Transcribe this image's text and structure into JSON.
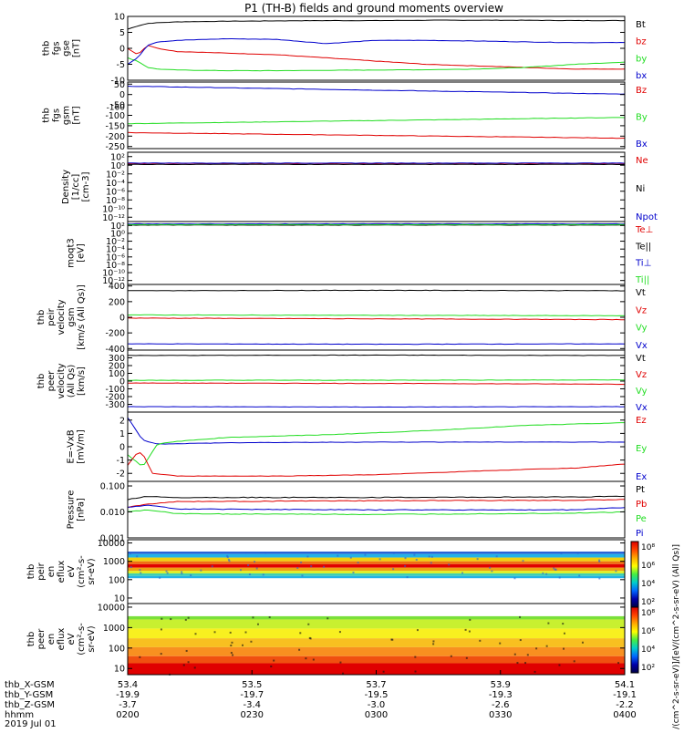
{
  "title": "P1 (TH-B) fields and ground moments overview",
  "date_label": "2019 Jul 01",
  "colors": {
    "black": "#000000",
    "red": "#e00000",
    "green": "#22dd22",
    "blue": "#0000cc"
  },
  "chart_data": [
    {
      "type": "line",
      "ylabel": [
        "thb",
        "fgs",
        "gse",
        "[nT]"
      ],
      "ylim": [
        -10,
        10
      ],
      "yticks": [
        10,
        5,
        0,
        -5,
        -10
      ],
      "ytick_labels": [
        "10",
        "5",
        "0",
        "-5",
        "-10"
      ],
      "legend": [
        {
          "text": "Bt",
          "color": "black"
        },
        {
          "text": "bz",
          "color": "red"
        },
        {
          "text": "by",
          "color": "green"
        },
        {
          "text": "bx",
          "color": "blue"
        }
      ],
      "series": [
        {
          "name": "Bt",
          "color": "black",
          "x": [
            0,
            0.02,
            0.04,
            0.06,
            0.1,
            0.2,
            0.3,
            0.4,
            0.5,
            0.6,
            0.7,
            0.8,
            0.9,
            1
          ],
          "y": [
            6,
            7,
            7.8,
            8,
            8.3,
            8.5,
            8.6,
            8.7,
            8.7,
            8.8,
            8.8,
            8.8,
            8.7,
            8.7
          ]
        },
        {
          "name": "bz",
          "color": "red",
          "x": [
            0,
            0.02,
            0.04,
            0.06,
            0.1,
            0.2,
            0.3,
            0.4,
            0.5,
            0.6,
            0.7,
            0.8,
            0.9,
            1
          ],
          "y": [
            0,
            -2,
            1,
            0,
            -1,
            -1.5,
            -2,
            -3,
            -4,
            -5,
            -5.5,
            -6,
            -6.5,
            -6.5
          ]
        },
        {
          "name": "by",
          "color": "green",
          "x": [
            0,
            0.02,
            0.04,
            0.06,
            0.1,
            0.2,
            0.3,
            0.4,
            0.5,
            0.6,
            0.7,
            0.8,
            0.9,
            1
          ],
          "y": [
            -3,
            -4,
            -6,
            -6.5,
            -6.8,
            -7,
            -7,
            -6.9,
            -6.8,
            -6.7,
            -6.5,
            -6,
            -5,
            -4.3
          ]
        },
        {
          "name": "bx",
          "color": "blue",
          "x": [
            0,
            0.02,
            0.04,
            0.06,
            0.1,
            0.2,
            0.3,
            0.4,
            0.5,
            0.6,
            0.7,
            0.8,
            0.9,
            1
          ],
          "y": [
            -5,
            -3,
            1,
            2,
            2.5,
            3,
            2.8,
            1.5,
            2.5,
            2.5,
            2.3,
            2,
            1.8,
            1.8
          ]
        }
      ]
    },
    {
      "type": "line",
      "ylabel": [
        "thb",
        "fgs",
        "gsm",
        "[nT]"
      ],
      "ylim": [
        -260,
        60
      ],
      "yticks": [
        50,
        0,
        -50,
        -100,
        -150,
        -200,
        -250
      ],
      "ytick_labels": [
        "50",
        "0",
        "-50",
        "-100",
        "-150",
        "-200",
        "-250"
      ],
      "overlap_tick": "-160",
      "legend": [
        {
          "text": "Bz",
          "color": "red"
        },
        {
          "text": "By",
          "color": "green"
        },
        {
          "text": "Bx",
          "color": "blue"
        }
      ],
      "series": [
        {
          "name": "Bx",
          "color": "blue",
          "x": [
            0,
            1
          ],
          "y": [
            40,
            2
          ]
        },
        {
          "name": "By",
          "color": "green",
          "x": [
            0,
            1
          ],
          "y": [
            -140,
            -110
          ]
        },
        {
          "name": "Bz",
          "color": "red",
          "x": [
            0,
            1
          ],
          "y": [
            -183,
            -210
          ]
        }
      ]
    },
    {
      "type": "line",
      "ylabel": [
        "Density",
        "[1/cc]",
        "[cm-3]"
      ],
      "ylim": [
        -13,
        3
      ],
      "yticks": [
        2,
        0,
        -2,
        -4,
        -6,
        -8,
        -10,
        -12
      ],
      "ytick_labels": [
        "10²",
        "10⁰",
        "10⁻²",
        "10⁻⁴",
        "10⁻⁶",
        "10⁻⁸",
        "10⁻¹⁰",
        "10⁻¹²"
      ],
      "legend": [
        {
          "text": "Ne",
          "color": "red"
        },
        {
          "text": "Ni",
          "color": "black"
        },
        {
          "text": "Npot",
          "color": "blue"
        }
      ],
      "series": [
        {
          "name": "Ne",
          "color": "red",
          "x": [
            0,
            1
          ],
          "y": [
            0.4,
            0.4
          ]
        },
        {
          "name": "Ni",
          "color": "black",
          "x": [
            0,
            1
          ],
          "y": [
            0.2,
            0.2
          ]
        },
        {
          "name": "Npot",
          "color": "blue",
          "x": [
            0,
            1
          ],
          "y": [
            0.5,
            0.5
          ]
        }
      ]
    },
    {
      "type": "line",
      "ylabel": [
        "moqt3",
        "[eV]"
      ],
      "ylim": [
        -13,
        3
      ],
      "yticks": [
        2,
        0,
        -2,
        -4,
        -6,
        -8,
        -10,
        -12
      ],
      "ytick_labels": [
        "10²",
        "10⁰",
        "10⁻²",
        "10⁻⁴",
        "10⁻⁶",
        "10⁻⁸",
        "10⁻¹⁰",
        "10⁻¹²"
      ],
      "legend": [
        {
          "text": "Te⊥",
          "color": "red"
        },
        {
          "text": "Te||",
          "color": "black"
        },
        {
          "text": "Ti⊥",
          "color": "blue"
        },
        {
          "text": "Ti||",
          "color": "green"
        }
      ],
      "series": [
        {
          "name": "Te⊥",
          "color": "red",
          "x": [
            0,
            1
          ],
          "y": [
            2.3,
            2.3
          ]
        },
        {
          "name": "Te||",
          "color": "black",
          "x": [
            0,
            1
          ],
          "y": [
            2.1,
            2.1
          ]
        },
        {
          "name": "Ti⊥",
          "color": "blue",
          "x": [
            0,
            1
          ],
          "y": [
            2.4,
            2.4
          ]
        },
        {
          "name": "Ti||",
          "color": "green",
          "x": [
            0,
            1
          ],
          "y": [
            2.2,
            2.2
          ]
        }
      ]
    },
    {
      "type": "line",
      "ylabel": [
        "thb",
        "peir",
        "velocity",
        "gsm",
        "[km/s (All Qs)]"
      ],
      "ylim": [
        -420,
        420
      ],
      "yticks": [
        400,
        200,
        0,
        -200,
        -400
      ],
      "ytick_labels": [
        "400",
        "200",
        "0",
        "-200",
        "-400"
      ],
      "legend": [
        {
          "text": "Vt",
          "color": "black"
        },
        {
          "text": "Vz",
          "color": "red"
        },
        {
          "text": "Vy",
          "color": "green"
        },
        {
          "text": "Vx",
          "color": "blue"
        }
      ],
      "series": [
        {
          "name": "Vt",
          "color": "black",
          "x": [
            0,
            0.5,
            1
          ],
          "y": [
            340,
            345,
            340
          ]
        },
        {
          "name": "Vz",
          "color": "red",
          "x": [
            0,
            0.5,
            1
          ],
          "y": [
            -10,
            -20,
            -30
          ]
        },
        {
          "name": "Vy",
          "color": "green",
          "x": [
            0,
            0.5,
            1
          ],
          "y": [
            30,
            25,
            20
          ]
        },
        {
          "name": "Vx",
          "color": "blue",
          "x": [
            0,
            0.5,
            1
          ],
          "y": [
            -340,
            -345,
            -340
          ]
        }
      ]
    },
    {
      "type": "line",
      "ylabel": [
        "thb",
        "peer",
        "velocity",
        "(All Qs)",
        "[km/s]"
      ],
      "ylim": [
        -400,
        400
      ],
      "yticks": [
        300,
        200,
        100,
        0,
        -100,
        -200,
        -300
      ],
      "ytick_labels": [
        "300",
        "200",
        "100",
        "0",
        "-100",
        "-200",
        "-300"
      ],
      "legend": [
        {
          "text": "Vt",
          "color": "black"
        },
        {
          "text": "Vz",
          "color": "red"
        },
        {
          "text": "Vy",
          "color": "green"
        },
        {
          "text": "Vx",
          "color": "blue"
        }
      ],
      "series": [
        {
          "name": "Vt",
          "color": "black",
          "x": [
            0,
            0.5,
            1
          ],
          "y": [
            330,
            335,
            330
          ]
        },
        {
          "name": "Vz",
          "color": "red",
          "x": [
            0,
            0.5,
            1
          ],
          "y": [
            -25,
            -30,
            -40
          ]
        },
        {
          "name": "Vy",
          "color": "green",
          "x": [
            0,
            0.5,
            1
          ],
          "y": [
            10,
            12,
            15
          ]
        },
        {
          "name": "Vx",
          "color": "blue",
          "x": [
            0,
            0.5,
            1
          ],
          "y": [
            -330,
            -335,
            -330
          ]
        }
      ]
    },
    {
      "type": "line",
      "ylabel": [
        "E=-VxB",
        "[mV/m]"
      ],
      "ylim": [
        -2.6,
        2.6
      ],
      "yticks": [
        2,
        1,
        0,
        -1,
        -2
      ],
      "ytick_labels": [
        "2",
        "1",
        "0",
        "-1",
        "-2"
      ],
      "legend": [
        {
          "text": "Ez",
          "color": "red"
        },
        {
          "text": "Ey",
          "color": "green"
        },
        {
          "text": "Ex",
          "color": "blue"
        }
      ],
      "series": [
        {
          "name": "Ex",
          "color": "blue",
          "x": [
            0,
            0.03,
            0.06,
            0.2,
            0.5,
            1
          ],
          "y": [
            2.2,
            0.5,
            0.2,
            0.3,
            0.35,
            0.35
          ]
        },
        {
          "name": "Ey",
          "color": "green",
          "x": [
            0,
            0.03,
            0.06,
            0.1,
            0.2,
            0.4,
            0.6,
            0.8,
            1
          ],
          "y": [
            -0.6,
            -1.5,
            0.2,
            0.4,
            0.7,
            0.9,
            1.2,
            1.6,
            1.8
          ]
        },
        {
          "name": "Ez",
          "color": "red",
          "x": [
            0,
            0.02,
            0.03,
            0.05,
            0.1,
            0.3,
            0.5,
            0.8,
            0.9,
            1
          ],
          "y": [
            -1.4,
            -0.4,
            -0.5,
            -2,
            -2.2,
            -2.2,
            -2.1,
            -1.7,
            -1.6,
            -1.3
          ]
        }
      ]
    },
    {
      "type": "line",
      "ylabel": [
        "Pressure",
        "[nPa]"
      ],
      "ylog": true,
      "ylim": [
        0.001,
        0.15
      ],
      "yticks": [
        0.1,
        0.01,
        0.001
      ],
      "ytick_labels": [
        "0.100",
        "0.010",
        "0.001"
      ],
      "legend": [
        {
          "text": "Pt",
          "color": "black"
        },
        {
          "text": "Pb",
          "color": "red"
        },
        {
          "text": "Pe",
          "color": "green"
        },
        {
          "text": "Pi",
          "color": "blue"
        }
      ],
      "series": [
        {
          "name": "Pt",
          "color": "black",
          "x": [
            0,
            0.04,
            0.1,
            0.5,
            0.9,
            1
          ],
          "y": [
            0.03,
            0.04,
            0.036,
            0.036,
            0.038,
            0.04
          ]
        },
        {
          "name": "Pb",
          "color": "red",
          "x": [
            0,
            0.04,
            0.1,
            0.5,
            0.9,
            1
          ],
          "y": [
            0.015,
            0.02,
            0.025,
            0.027,
            0.028,
            0.03
          ]
        },
        {
          "name": "Pe",
          "color": "green",
          "x": [
            0,
            0.04,
            0.1,
            0.5,
            0.9,
            1
          ],
          "y": [
            0.01,
            0.012,
            0.0085,
            0.008,
            0.009,
            0.01
          ]
        },
        {
          "name": "Pi",
          "color": "blue",
          "x": [
            0,
            0.04,
            0.1,
            0.5,
            0.9,
            1
          ],
          "y": [
            0.015,
            0.018,
            0.013,
            0.012,
            0.012,
            0.015
          ]
        }
      ]
    },
    {
      "type": "heatmap",
      "ylabel": [
        "thb",
        "peir",
        "en",
        "eflux",
        "eV",
        "(cm²-s-",
        "sr-eV)"
      ],
      "ylog": true,
      "ylim": [
        5,
        15000
      ],
      "yticks": [
        10000,
        1000,
        100,
        10
      ],
      "ytick_labels": [
        "10000",
        "1000",
        "100",
        "10"
      ],
      "bands": [
        {
          "from": 2500,
          "to": 3400,
          "color": "#2a63d6"
        },
        {
          "from": 1600,
          "to": 2500,
          "color": "#23b2e6"
        },
        {
          "from": 1000,
          "to": 1600,
          "color": "#f0d010"
        },
        {
          "from": 700,
          "to": 1000,
          "color": "#f07010"
        },
        {
          "from": 450,
          "to": 700,
          "color": "#e00000"
        },
        {
          "from": 300,
          "to": 450,
          "color": "#f0a010"
        },
        {
          "from": 220,
          "to": 300,
          "color": "#e0f020"
        },
        {
          "from": 160,
          "to": 220,
          "color": "#40d0b0"
        },
        {
          "from": 120,
          "to": 160,
          "color": "#23b2e6"
        }
      ]
    },
    {
      "type": "heatmap",
      "ylabel": [
        "thb",
        "peer",
        "en",
        "eflux",
        "eV",
        "(cm²-s-",
        "sr-eV)"
      ],
      "ylog": true,
      "ylim": [
        5,
        15000
      ],
      "yticks": [
        10000,
        1000,
        100,
        10
      ],
      "ytick_labels": [
        "10000",
        "1000",
        "100",
        "10"
      ],
      "bands": [
        {
          "from": 2500,
          "to": 3600,
          "color": "#7ae03a"
        },
        {
          "from": 900,
          "to": 2500,
          "color": "#c8f030"
        },
        {
          "from": 300,
          "to": 900,
          "color": "#f8f020"
        },
        {
          "from": 110,
          "to": 300,
          "color": "#f8c020"
        },
        {
          "from": 40,
          "to": 110,
          "color": "#f89020"
        },
        {
          "from": 18,
          "to": 40,
          "color": "#f05010"
        },
        {
          "from": 5,
          "to": 18,
          "color": "#e00000"
        }
      ]
    }
  ],
  "colorbar": {
    "ticks": [
      "10⁸",
      "10⁶",
      "10⁴",
      "10²",
      "10⁸",
      "10⁶",
      "10⁴",
      "10²"
    ],
    "label": "[eV/(cm^2-s-sr-eV)]/[eV/(cm^2-s-sr-eV) (All Qs)]",
    "gradient": [
      "#dd0000",
      "#ff4400",
      "#ffaa00",
      "#ffff00",
      "#44ee44",
      "#00cccc",
      "#0066ff",
      "#0000aa",
      "#000044"
    ]
  },
  "x_axis": {
    "rows": [
      {
        "label": "thb_X-GSM",
        "values": [
          "53.4",
          "53.5",
          "53.7",
          "53.9",
          "54.1"
        ]
      },
      {
        "label": "thb_Y-GSM",
        "values": [
          "-19.9",
          "-19.7",
          "-19.5",
          "-19.3",
          "-19.1"
        ]
      },
      {
        "label": "thb_Z-GSM",
        "values": [
          "-3.7",
          "-3.4",
          "-3.0",
          "-2.6",
          "-2.2"
        ]
      },
      {
        "label": "hhmm",
        "values": [
          "0200",
          "0230",
          "0300",
          "0330",
          "0400"
        ]
      }
    ]
  }
}
